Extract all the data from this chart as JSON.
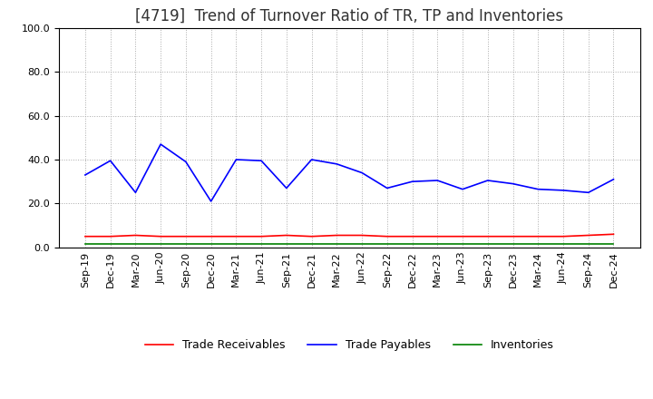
{
  "title": "[4719]  Trend of Turnover Ratio of TR, TP and Inventories",
  "ylim": [
    0.0,
    100.0
  ],
  "yticks": [
    0.0,
    20.0,
    40.0,
    60.0,
    80.0,
    100.0
  ],
  "x_labels": [
    "Sep-19",
    "Dec-19",
    "Mar-20",
    "Jun-20",
    "Sep-20",
    "Dec-20",
    "Mar-21",
    "Jun-21",
    "Sep-21",
    "Dec-21",
    "Mar-22",
    "Jun-22",
    "Sep-22",
    "Dec-22",
    "Mar-23",
    "Jun-23",
    "Sep-23",
    "Dec-23",
    "Mar-24",
    "Jun-24",
    "Sep-24",
    "Dec-24"
  ],
  "trade_receivables": [
    5.0,
    5.0,
    5.5,
    5.0,
    5.0,
    5.0,
    5.0,
    5.0,
    5.5,
    5.0,
    5.5,
    5.5,
    5.0,
    5.0,
    5.0,
    5.0,
    5.0,
    5.0,
    5.0,
    5.0,
    5.5,
    6.0
  ],
  "trade_payables": [
    33.0,
    39.5,
    25.0,
    47.0,
    39.0,
    21.0,
    40.0,
    39.5,
    27.0,
    40.0,
    38.0,
    34.0,
    27.0,
    30.0,
    30.5,
    26.5,
    30.5,
    29.0,
    26.5,
    26.0,
    25.0,
    31.0
  ],
  "inventories": [
    1.5,
    1.5,
    1.5,
    1.5,
    1.5,
    1.5,
    1.5,
    1.5,
    1.5,
    1.5,
    1.5,
    1.5,
    1.5,
    1.5,
    1.5,
    1.5,
    1.5,
    1.5,
    1.5,
    1.5,
    1.5,
    1.5
  ],
  "tr_color": "#ff0000",
  "tp_color": "#0000ff",
  "inv_color": "#008000",
  "background_color": "#ffffff",
  "grid_color": "#aaaaaa",
  "title_fontsize": 12,
  "legend_fontsize": 9,
  "tick_fontsize": 8
}
